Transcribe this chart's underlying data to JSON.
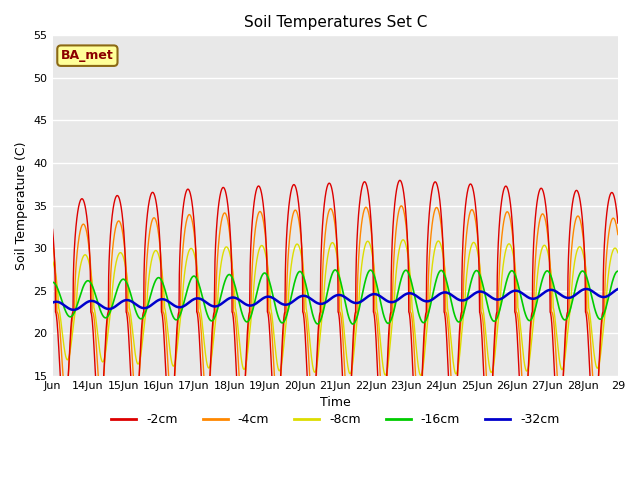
{
  "title": "Soil Temperatures Set C",
  "xlabel": "Time",
  "ylabel": "Soil Temperature (C)",
  "ylim": [
    15,
    55
  ],
  "bg_color": "#e8e8e8",
  "annotation_text": "BA_met",
  "annotation_box_color": "#ffff99",
  "annotation_text_color": "#8b0000",
  "grid_color": "white",
  "tick_labels": [
    "Jun",
    "14Jun",
    "15Jun",
    "16Jun",
    "17Jun",
    "18Jun",
    "19Jun",
    "20Jun",
    "21Jun",
    "22Jun",
    "23Jun",
    "24Jun",
    "25Jun",
    "26Jun",
    "27Jun",
    "28Jun",
    "29"
  ],
  "series": {
    "-2cm": {
      "color": "#dd0000",
      "lw": 1.0
    },
    "-4cm": {
      "color": "#ff8800",
      "lw": 1.0
    },
    "-8cm": {
      "color": "#dddd00",
      "lw": 1.0
    },
    "-16cm": {
      "color": "#00cc00",
      "lw": 1.2
    },
    "-32cm": {
      "color": "#0000cc",
      "lw": 1.8
    }
  }
}
